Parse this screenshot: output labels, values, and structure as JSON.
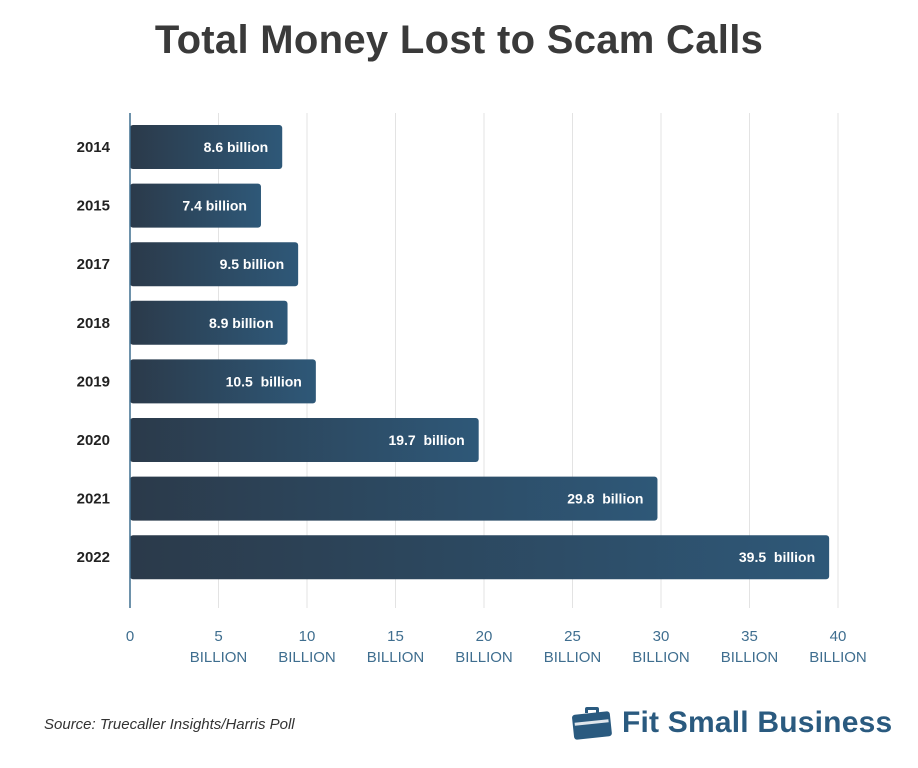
{
  "header": {
    "title": "Total Money Lost to Scam Calls"
  },
  "chart_data": {
    "type": "bar",
    "orientation": "horizontal",
    "title": "Total Money Lost to Scam Calls",
    "categories": [
      "2014",
      "2015",
      "2017",
      "2018",
      "2019",
      "2020",
      "2021",
      "2022"
    ],
    "values": [
      8.6,
      7.4,
      9.5,
      8.9,
      10.5,
      19.7,
      29.8,
      39.5
    ],
    "data_labels": [
      "8.6 billion",
      "7.4 billion",
      "9.5 billion",
      "8.9 billion",
      "10.5  billion",
      "19.7  billion",
      "29.8  billion",
      "39.5  billion"
    ],
    "xlim": [
      0,
      40
    ],
    "x_ticks": [
      {
        "value": 0,
        "label": "0",
        "unit": ""
      },
      {
        "value": 5,
        "label": "5",
        "unit": "BILLION"
      },
      {
        "value": 10,
        "label": "10",
        "unit": "BILLION"
      },
      {
        "value": 15,
        "label": "15",
        "unit": "BILLION"
      },
      {
        "value": 20,
        "label": "20",
        "unit": "BILLION"
      },
      {
        "value": 25,
        "label": "25",
        "unit": "BILLION"
      },
      {
        "value": 30,
        "label": "30",
        "unit": "BILLION"
      },
      {
        "value": 35,
        "label": "35",
        "unit": "BILLION"
      },
      {
        "value": 40,
        "label": "40",
        "unit": "BILLION"
      }
    ],
    "grid": "vertical",
    "legend": "none",
    "colors": {
      "bar_start": "#2b3a4a",
      "bar_end": "#2e5878",
      "bar_label": "#ffffff",
      "category_label": "#222222",
      "tick_label": "#3f6e8f",
      "grid": "#e3e3e3",
      "axis": "#3f6e8f"
    }
  },
  "footer": {
    "source": "Source: Truecaller Insights/Harris Poll",
    "brand_name": "Fit Small Business",
    "brand_icon": "briefcase-icon",
    "brand_color": "#2a5a7f"
  }
}
